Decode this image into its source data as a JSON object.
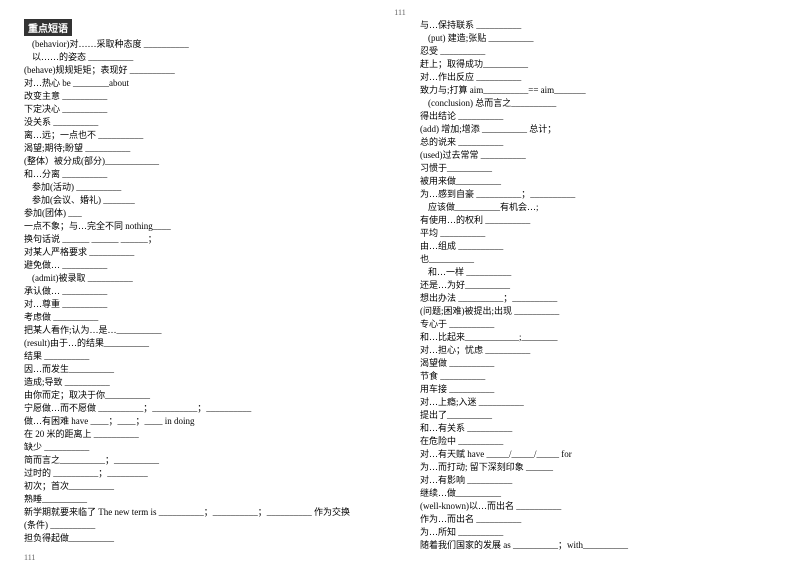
{
  "pageTop": "111",
  "pageBottom": "111",
  "heading": "重点短语",
  "leftLines": [
    {
      "t": "(behavior)对……采取种态度 __________",
      "i": 1
    },
    {
      "t": "以……的姿态 __________",
      "i": 1
    },
    {
      "t": "(behave)规规矩矩；表现好 __________",
      "i": 0
    },
    {
      "t": "对…热心 be ________about",
      "i": 0
    },
    {
      "t": "改变主意 __________",
      "i": 0
    },
    {
      "t": "下定决心 __________",
      "i": 0
    },
    {
      "t": "没关系 __________",
      "i": 0
    },
    {
      "t": "离…远；一点也不 __________",
      "i": 0
    },
    {
      "t": "渴望;期待;盼望 __________",
      "i": 0
    },
    {
      "t": "(整体）被分成(部分)____________",
      "i": 0
    },
    {
      "t": "和…分离 __________",
      "i": 0
    },
    {
      "t": "参加(活动) __________",
      "i": 1
    },
    {
      "t": "参加(会议、婚礼) _______",
      "i": 1
    },
    {
      "t": "参加(团体) ___",
      "i": 0
    },
    {
      "t": "一点不象；与…完全不同 nothing____",
      "i": 0
    },
    {
      "t": "换句话说 ______    ______   ______；",
      "i": 0
    },
    {
      "t": "对某人严格要求 __________",
      "i": 0
    },
    {
      "t": "避免做… __________",
      "i": 0
    },
    {
      "t": "(admit)被录取 __________",
      "i": 1
    },
    {
      "t": "承认做… __________",
      "i": 0
    },
    {
      "t": "对…尊重 __________",
      "i": 0
    },
    {
      "t": "考虑做 __________",
      "i": 0
    },
    {
      "t": "把某人看作;认为…是…__________",
      "i": 0
    },
    {
      "t": "(result)由于…的结果__________",
      "i": 0
    },
    {
      "t": "结果 __________",
      "i": 0
    },
    {
      "t": "因…而发生__________",
      "i": 0
    },
    {
      "t": "造成;导致 __________",
      "i": 0
    },
    {
      "t": "由你而定；取决于你__________",
      "i": 0
    },
    {
      "t": "宁愿做…而不愿做 __________；__________；__________",
      "i": 0
    },
    {
      "t": "做…有困难 have ____；____；____ in doing",
      "i": 0
    },
    {
      "t": "在 20 米的距离上 __________",
      "i": 0
    },
    {
      "t": "缺少 __________",
      "i": 0
    },
    {
      "t": "简而言之__________；__________",
      "i": 0
    },
    {
      "t": "过时的 __________；_________",
      "i": 0
    },
    {
      "t": "初次；首次__________",
      "i": 0
    },
    {
      "t": "熟睡__________",
      "i": 0
    },
    {
      "t": "新学期就要来临了 The new term is __________；__________；__________ 作为交换",
      "i": 0
    },
    {
      "t": "(条件) __________",
      "i": 0
    },
    {
      "t": "担负得起做__________",
      "i": 0
    }
  ],
  "rightLines": [
    {
      "t": "与…保持联系 __________",
      "i": 0
    },
    {
      "t": "(put) 建造;张贴 __________",
      "i": 1
    },
    {
      "t": "忍受 __________",
      "i": 0
    },
    {
      "t": "赶上；取得成功__________",
      "i": 0
    },
    {
      "t": "对…作出反应 __________",
      "i": 0
    },
    {
      "t": "致力与;打算 aim__________== aim_______",
      "i": 0
    },
    {
      "t": "(conclusion) 总而言之__________",
      "i": 1
    },
    {
      "t": "得出结论 __________",
      "i": 0
    },
    {
      "t": "(add) 增加;增添 __________ 总计；",
      "i": 0
    },
    {
      "t": "总的说来 __________",
      "i": 0
    },
    {
      "t": "(used)过去常常 __________",
      "i": 0
    },
    {
      "t": "习惯于__________",
      "i": 0
    },
    {
      "t": "被用来做__________",
      "i": 0
    },
    {
      "t": "为…感到自豪 __________；__________",
      "i": 0
    },
    {
      "t": "应该做__________有机会…;",
      "i": 1
    },
    {
      "t": "有使用…的权利 __________",
      "i": 0
    },
    {
      "t": "平均 __________",
      "i": 0
    },
    {
      "t": "由…组成 __________",
      "i": 0
    },
    {
      "t": "也__________",
      "i": 0
    },
    {
      "t": "和…一样 __________",
      "i": 1
    },
    {
      "t": "还是…为好__________",
      "i": 0
    },
    {
      "t": "想出办法 __________；__________",
      "i": 0
    },
    {
      "t": "(问题;困难)被提出;出现 __________",
      "i": 0
    },
    {
      "t": "专心于 __________",
      "i": 0
    },
    {
      "t": "和…比起来____________;________",
      "i": 0
    },
    {
      "t": "对…担心；忧虑 __________",
      "i": 0
    },
    {
      "t": "渴望做 __________",
      "i": 0
    },
    {
      "t": "节食 __________",
      "i": 0
    },
    {
      "t": "用车接 __________",
      "i": 0
    },
    {
      "t": "对…上瘾;入迷 __________",
      "i": 0
    },
    {
      "t": "提出了__________",
      "i": 0
    },
    {
      "t": "和…有关系 __________",
      "i": 0
    },
    {
      "t": "在危险中 __________",
      "i": 0
    },
    {
      "t": "对…有天赋 have _____/_____/_____ for",
      "i": 0
    },
    {
      "t": "为…而打动; 留下深刻印象 ______",
      "i": 0
    },
    {
      "t": "对…有影响 __________",
      "i": 0
    },
    {
      "t": "继续…做__________",
      "i": 0
    },
    {
      "t": "(well-known)以…而出名 __________",
      "i": 0
    },
    {
      "t": "作为…而出名 __________",
      "i": 0
    },
    {
      "t": "为…所知 __________",
      "i": 0
    },
    {
      "t": "随着我们国家的发展 as __________；with__________",
      "i": 0
    }
  ]
}
